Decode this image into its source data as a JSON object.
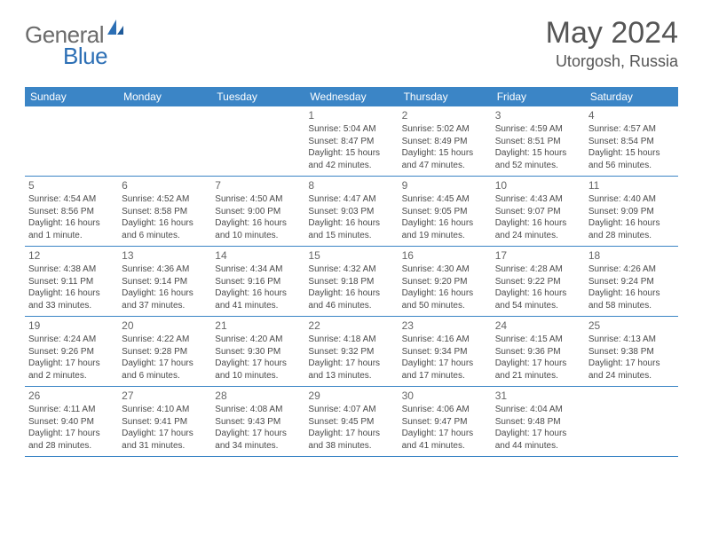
{
  "brand": {
    "text_general": "General",
    "text_blue": "Blue",
    "general_color": "#6b6b6b",
    "blue_color": "#2c6fb5"
  },
  "title": {
    "month": "May 2024",
    "location": "Utorgosh, Russia"
  },
  "colors": {
    "header_bg": "#3b85c6",
    "header_text": "#ffffff",
    "row_border": "#3b85c6",
    "daynum_color": "#666666",
    "info_color": "#4a4a4a",
    "title_color": "#555555",
    "background": "#ffffff"
  },
  "weekdays": [
    "Sunday",
    "Monday",
    "Tuesday",
    "Wednesday",
    "Thursday",
    "Friday",
    "Saturday"
  ],
  "weeks": [
    [
      {
        "blank": true
      },
      {
        "blank": true
      },
      {
        "blank": true
      },
      {
        "num": "1",
        "sunrise": "Sunrise: 5:04 AM",
        "sunset": "Sunset: 8:47 PM",
        "daylight": "Daylight: 15 hours and 42 minutes."
      },
      {
        "num": "2",
        "sunrise": "Sunrise: 5:02 AM",
        "sunset": "Sunset: 8:49 PM",
        "daylight": "Daylight: 15 hours and 47 minutes."
      },
      {
        "num": "3",
        "sunrise": "Sunrise: 4:59 AM",
        "sunset": "Sunset: 8:51 PM",
        "daylight": "Daylight: 15 hours and 52 minutes."
      },
      {
        "num": "4",
        "sunrise": "Sunrise: 4:57 AM",
        "sunset": "Sunset: 8:54 PM",
        "daylight": "Daylight: 15 hours and 56 minutes."
      }
    ],
    [
      {
        "num": "5",
        "sunrise": "Sunrise: 4:54 AM",
        "sunset": "Sunset: 8:56 PM",
        "daylight": "Daylight: 16 hours and 1 minute."
      },
      {
        "num": "6",
        "sunrise": "Sunrise: 4:52 AM",
        "sunset": "Sunset: 8:58 PM",
        "daylight": "Daylight: 16 hours and 6 minutes."
      },
      {
        "num": "7",
        "sunrise": "Sunrise: 4:50 AM",
        "sunset": "Sunset: 9:00 PM",
        "daylight": "Daylight: 16 hours and 10 minutes."
      },
      {
        "num": "8",
        "sunrise": "Sunrise: 4:47 AM",
        "sunset": "Sunset: 9:03 PM",
        "daylight": "Daylight: 16 hours and 15 minutes."
      },
      {
        "num": "9",
        "sunrise": "Sunrise: 4:45 AM",
        "sunset": "Sunset: 9:05 PM",
        "daylight": "Daylight: 16 hours and 19 minutes."
      },
      {
        "num": "10",
        "sunrise": "Sunrise: 4:43 AM",
        "sunset": "Sunset: 9:07 PM",
        "daylight": "Daylight: 16 hours and 24 minutes."
      },
      {
        "num": "11",
        "sunrise": "Sunrise: 4:40 AM",
        "sunset": "Sunset: 9:09 PM",
        "daylight": "Daylight: 16 hours and 28 minutes."
      }
    ],
    [
      {
        "num": "12",
        "sunrise": "Sunrise: 4:38 AM",
        "sunset": "Sunset: 9:11 PM",
        "daylight": "Daylight: 16 hours and 33 minutes."
      },
      {
        "num": "13",
        "sunrise": "Sunrise: 4:36 AM",
        "sunset": "Sunset: 9:14 PM",
        "daylight": "Daylight: 16 hours and 37 minutes."
      },
      {
        "num": "14",
        "sunrise": "Sunrise: 4:34 AM",
        "sunset": "Sunset: 9:16 PM",
        "daylight": "Daylight: 16 hours and 41 minutes."
      },
      {
        "num": "15",
        "sunrise": "Sunrise: 4:32 AM",
        "sunset": "Sunset: 9:18 PM",
        "daylight": "Daylight: 16 hours and 46 minutes."
      },
      {
        "num": "16",
        "sunrise": "Sunrise: 4:30 AM",
        "sunset": "Sunset: 9:20 PM",
        "daylight": "Daylight: 16 hours and 50 minutes."
      },
      {
        "num": "17",
        "sunrise": "Sunrise: 4:28 AM",
        "sunset": "Sunset: 9:22 PM",
        "daylight": "Daylight: 16 hours and 54 minutes."
      },
      {
        "num": "18",
        "sunrise": "Sunrise: 4:26 AM",
        "sunset": "Sunset: 9:24 PM",
        "daylight": "Daylight: 16 hours and 58 minutes."
      }
    ],
    [
      {
        "num": "19",
        "sunrise": "Sunrise: 4:24 AM",
        "sunset": "Sunset: 9:26 PM",
        "daylight": "Daylight: 17 hours and 2 minutes."
      },
      {
        "num": "20",
        "sunrise": "Sunrise: 4:22 AM",
        "sunset": "Sunset: 9:28 PM",
        "daylight": "Daylight: 17 hours and 6 minutes."
      },
      {
        "num": "21",
        "sunrise": "Sunrise: 4:20 AM",
        "sunset": "Sunset: 9:30 PM",
        "daylight": "Daylight: 17 hours and 10 minutes."
      },
      {
        "num": "22",
        "sunrise": "Sunrise: 4:18 AM",
        "sunset": "Sunset: 9:32 PM",
        "daylight": "Daylight: 17 hours and 13 minutes."
      },
      {
        "num": "23",
        "sunrise": "Sunrise: 4:16 AM",
        "sunset": "Sunset: 9:34 PM",
        "daylight": "Daylight: 17 hours and 17 minutes."
      },
      {
        "num": "24",
        "sunrise": "Sunrise: 4:15 AM",
        "sunset": "Sunset: 9:36 PM",
        "daylight": "Daylight: 17 hours and 21 minutes."
      },
      {
        "num": "25",
        "sunrise": "Sunrise: 4:13 AM",
        "sunset": "Sunset: 9:38 PM",
        "daylight": "Daylight: 17 hours and 24 minutes."
      }
    ],
    [
      {
        "num": "26",
        "sunrise": "Sunrise: 4:11 AM",
        "sunset": "Sunset: 9:40 PM",
        "daylight": "Daylight: 17 hours and 28 minutes."
      },
      {
        "num": "27",
        "sunrise": "Sunrise: 4:10 AM",
        "sunset": "Sunset: 9:41 PM",
        "daylight": "Daylight: 17 hours and 31 minutes."
      },
      {
        "num": "28",
        "sunrise": "Sunrise: 4:08 AM",
        "sunset": "Sunset: 9:43 PM",
        "daylight": "Daylight: 17 hours and 34 minutes."
      },
      {
        "num": "29",
        "sunrise": "Sunrise: 4:07 AM",
        "sunset": "Sunset: 9:45 PM",
        "daylight": "Daylight: 17 hours and 38 minutes."
      },
      {
        "num": "30",
        "sunrise": "Sunrise: 4:06 AM",
        "sunset": "Sunset: 9:47 PM",
        "daylight": "Daylight: 17 hours and 41 minutes."
      },
      {
        "num": "31",
        "sunrise": "Sunrise: 4:04 AM",
        "sunset": "Sunset: 9:48 PM",
        "daylight": "Daylight: 17 hours and 44 minutes."
      },
      {
        "blank": true
      }
    ]
  ]
}
